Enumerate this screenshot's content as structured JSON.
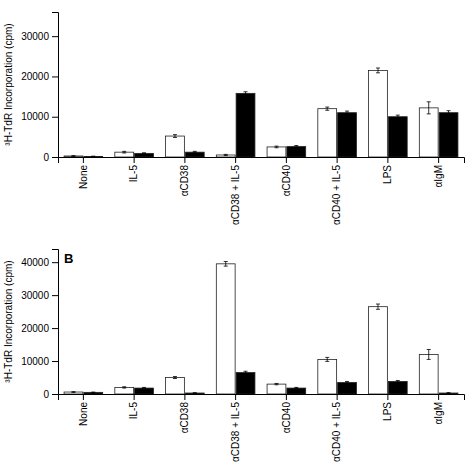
{
  "chart_data": [
    {
      "type": "bar",
      "categories": [
        "None",
        "IL-5",
        "αCD38",
        "αCD38 + IL-5",
        "αCD40",
        "αCD40 + IL-5",
        "LPS",
        "αIgM"
      ],
      "series": [
        {
          "color": "white",
          "values": [
            250,
            1200,
            5200,
            500,
            2500,
            12000,
            21500,
            12200
          ],
          "errors": [
            80,
            200,
            350,
            150,
            200,
            400,
            600,
            1500
          ]
        },
        {
          "color": "black",
          "values": [
            150,
            900,
            1200,
            15800,
            2600,
            11000,
            10000,
            11000
          ],
          "errors": [
            60,
            150,
            200,
            400,
            250,
            400,
            400,
            500
          ]
        }
      ],
      "ylabel": "³H-TdR Incorporation (cpm)",
      "ylim": [
        0,
        36000
      ],
      "yticks": [
        0,
        10000,
        20000,
        30000
      ]
    },
    {
      "type": "bar",
      "title": "B",
      "categories": [
        "None",
        "IL-5",
        "αCD38",
        "αCD38 + IL-5",
        "αCD40",
        "αCD40 + IL-5",
        "LPS",
        "αIgM"
      ],
      "series": [
        {
          "color": "white",
          "values": [
            600,
            2000,
            5000,
            39500,
            3000,
            10500,
            26500,
            12000
          ],
          "errors": [
            100,
            200,
            300,
            700,
            200,
            600,
            800,
            1500
          ]
        },
        {
          "color": "black",
          "values": [
            500,
            1800,
            300,
            6500,
            1800,
            3500,
            3800,
            300
          ],
          "errors": [
            80,
            200,
            100,
            400,
            200,
            300,
            300,
            100
          ]
        }
      ],
      "ylabel": "³H-TdR Incorporation (cpm)",
      "ylim": [
        0,
        44000
      ],
      "yticks": [
        0,
        10000,
        20000,
        30000,
        40000
      ]
    }
  ]
}
